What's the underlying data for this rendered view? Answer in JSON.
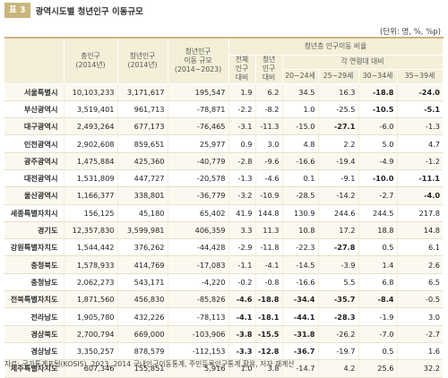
{
  "header": {
    "tag": "표 3",
    "title": "광역시도별 청년인구 이동규모"
  },
  "unit": "(단위: 명, %, %p)",
  "columns": {
    "total_pop": [
      "총인구",
      "(2014년)"
    ],
    "youth_pop": [
      "청년인구",
      "(2014년)"
    ],
    "migration": [
      "청년인구",
      "이동 규모",
      "(2014~2023)"
    ],
    "group_title": "청년층 인구이동 비율",
    "vs_total": [
      "전체",
      "인구",
      "대비"
    ],
    "vs_youth": [
      "청년",
      "인구",
      "대비"
    ],
    "age_group_title": "각 연령대 대비",
    "ages": [
      "20~24세",
      "25~29세",
      "30~34세",
      "35~39세"
    ]
  },
  "rows": [
    {
      "name": "서울특별시",
      "v": [
        "10,103,233",
        "3,171,617",
        "195,547",
        "1.9",
        "6.2",
        "34.5",
        "16.3",
        "-18.8",
        "-24.0"
      ],
      "bold": [
        7,
        8
      ],
      "hl": true
    },
    {
      "name": "부산광역시",
      "v": [
        "3,519,401",
        "961,713",
        "-78,871",
        "-2.2",
        "-8.2",
        "1.0",
        "-25.5",
        "-10.5",
        "-5.1"
      ],
      "bold": [
        7,
        8
      ],
      "hl": false
    },
    {
      "name": "대구광역시",
      "v": [
        "2,493,264",
        "677,173",
        "-76,465",
        "-3.1",
        "-11.3",
        "-15.0",
        "-27.1",
        "-6.0",
        "-1.3"
      ],
      "bold": [
        6
      ],
      "hl": true
    },
    {
      "name": "인천광역시",
      "v": [
        "2,902,608",
        "859,651",
        "25,977",
        "0.9",
        "3.0",
        "4.8",
        "2.2",
        "5.0",
        "4.7"
      ],
      "bold": [],
      "hl": false
    },
    {
      "name": "광주광역시",
      "v": [
        "1,475,884",
        "425,360",
        "-40,779",
        "-2.8",
        "-9.6",
        "-16.6",
        "-19.4",
        "-4.9",
        "-1.2"
      ],
      "bold": [],
      "hl": true
    },
    {
      "name": "대전광역시",
      "v": [
        "1,531,809",
        "447,727",
        "-20,578",
        "-1.3",
        "-4.6",
        "0.1",
        "-9.1",
        "-10.0",
        "-11.1"
      ],
      "bold": [
        7,
        8
      ],
      "hl": false
    },
    {
      "name": "울산광역시",
      "v": [
        "1,166,377",
        "338,801",
        "-36,779",
        "-3.2",
        "-10.9",
        "-28.5",
        "-14.2",
        "-2.7",
        "-4.0"
      ],
      "bold": [
        8
      ],
      "hl": true
    },
    {
      "name": "세종특별자치시",
      "v": [
        "156,125",
        "45,180",
        "65,402",
        "41.9",
        "144.8",
        "130.9",
        "244.6",
        "244.5",
        "217.8"
      ],
      "bold": [],
      "hl": false
    },
    {
      "name": "경기도",
      "v": [
        "12,357,830",
        "3,599,981",
        "406,359",
        "3.3",
        "11.3",
        "10.8",
        "17.2",
        "18.8",
        "14.8"
      ],
      "bold": [],
      "hl": true
    },
    {
      "name": "강원특별자치도",
      "v": [
        "1,544,442",
        "376,262",
        "-44,428",
        "-2.9",
        "-11.8",
        "-22.3",
        "-27.8",
        "0.5",
        "6.1"
      ],
      "bold": [
        6
      ],
      "hl": false
    },
    {
      "name": "충청북도",
      "v": [
        "1,578,933",
        "414,769",
        "-17,083",
        "-1.1",
        "-4.1",
        "-14.5",
        "-3.9",
        "1.4",
        "2.6"
      ],
      "bold": [],
      "hl": true
    },
    {
      "name": "충청남도",
      "v": [
        "2,062,273",
        "543,171",
        "-4,220",
        "-0.2",
        "-0.8",
        "-16.6",
        "5.5",
        "6.8",
        "6.5"
      ],
      "bold": [],
      "hl": false
    },
    {
      "name": "전북특별자치도",
      "v": [
        "1,871,560",
        "456,830",
        "-85,826",
        "-4.6",
        "-18.8",
        "-34.4",
        "-35.7",
        "-8.4",
        "-0.5"
      ],
      "bold": [
        3,
        4,
        5,
        6,
        7
      ],
      "hl": true
    },
    {
      "name": "전라남도",
      "v": [
        "1,905,780",
        "432,226",
        "-78,113",
        "-4.1",
        "-18.1",
        "-44.1",
        "-28.3",
        "-1.9",
        "3.0"
      ],
      "bold": [
        3,
        4,
        5,
        6
      ],
      "hl": false
    },
    {
      "name": "경상북도",
      "v": [
        "2,700,794",
        "669,000",
        "-103,906",
        "-3.8",
        "-15.5",
        "-31.8",
        "-26.2",
        "-7.0",
        "-2.7"
      ],
      "bold": [
        3,
        4,
        5
      ],
      "hl": true
    },
    {
      "name": "경상남도",
      "v": [
        "3,350,257",
        "878,579",
        "-112,153",
        "-3.3",
        "-12.8",
        "-36.7",
        "-19.7",
        "0.5",
        "1.6"
      ],
      "bold": [
        3,
        4,
        5
      ],
      "hl": false
    },
    {
      "name": "제주특별자치도",
      "v": [
        "607,346",
        "155,851",
        "5,916",
        "1.0",
        "3.8",
        "-14.7",
        "4.2",
        "25.6",
        "32.2"
      ],
      "bold": [],
      "hl": true
    }
  ],
  "source": "자료: 국가통계포털(KOSIS), 2023, 2014 국내인구이동통계, 주민등록인구통계 활용, 저자 재계산"
}
